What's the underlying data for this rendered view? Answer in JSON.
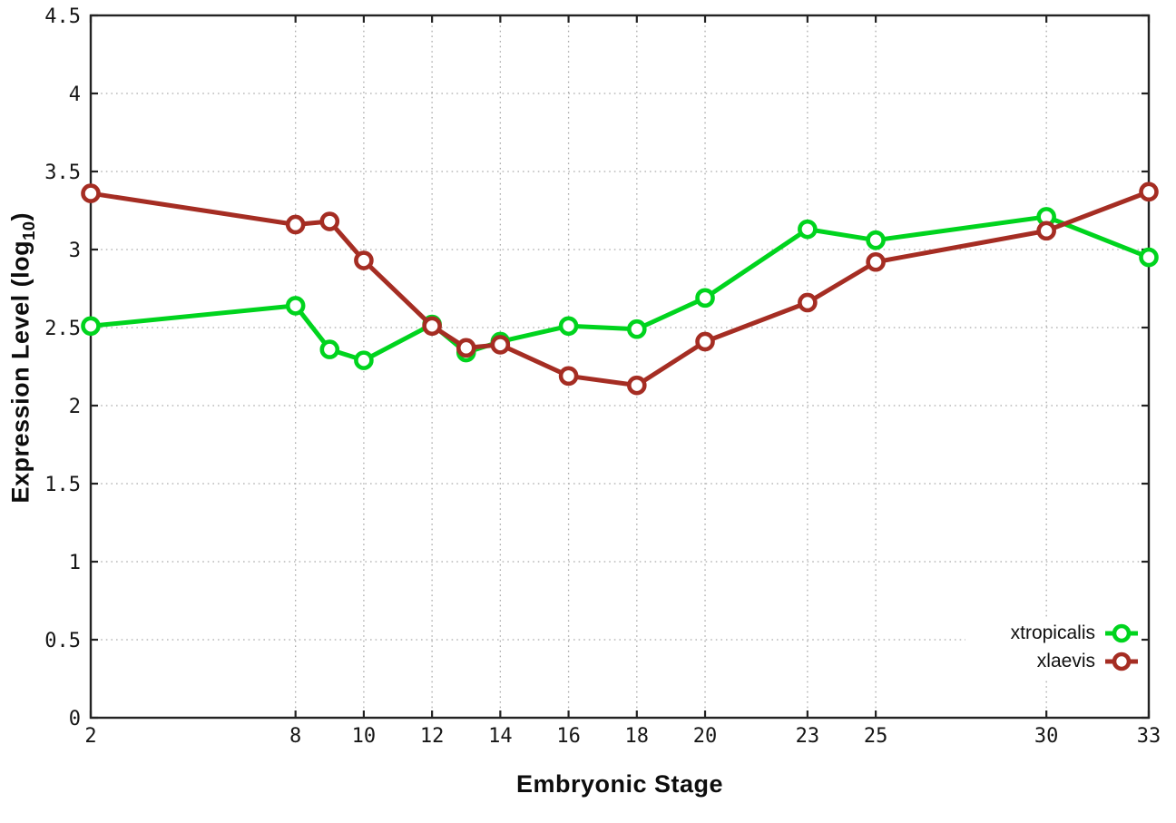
{
  "chart_data": {
    "type": "line",
    "title": "",
    "xlabel": "Embryonic Stage",
    "ylabel": {
      "text": "Expression Level (log10)",
      "prefix": "Expression Level (log",
      "sub": "10",
      "suffix": ")"
    },
    "xlim": [
      2,
      33
    ],
    "ylim": [
      0,
      4.5
    ],
    "xticks": [
      2,
      8,
      10,
      12,
      14,
      16,
      18,
      20,
      23,
      25,
      30,
      33
    ],
    "yticks": [
      0,
      0.5,
      1,
      1.5,
      2,
      2.5,
      3,
      3.5,
      4,
      4.5
    ],
    "grid": true,
    "marker": "open-circle",
    "legend_position": "bottom-right",
    "background_color": "#ffffff",
    "axis_color": "#232323",
    "grid_color": "#ababab",
    "x": [
      2,
      8,
      9,
      10,
      12,
      13,
      14,
      16,
      18,
      20,
      23,
      25,
      30,
      33
    ],
    "series": [
      {
        "name": "xtropicalis",
        "color": "#00d41e",
        "values": [
          2.51,
          2.64,
          2.36,
          2.29,
          2.52,
          2.34,
          2.41,
          2.51,
          2.49,
          2.69,
          3.13,
          3.06,
          3.21,
          2.95
        ]
      },
      {
        "name": "xlaevis",
        "color": "#a52d23",
        "values": [
          3.36,
          3.16,
          3.18,
          2.93,
          2.51,
          2.37,
          2.39,
          2.19,
          2.13,
          2.41,
          2.66,
          2.92,
          3.12,
          3.37
        ]
      }
    ]
  }
}
